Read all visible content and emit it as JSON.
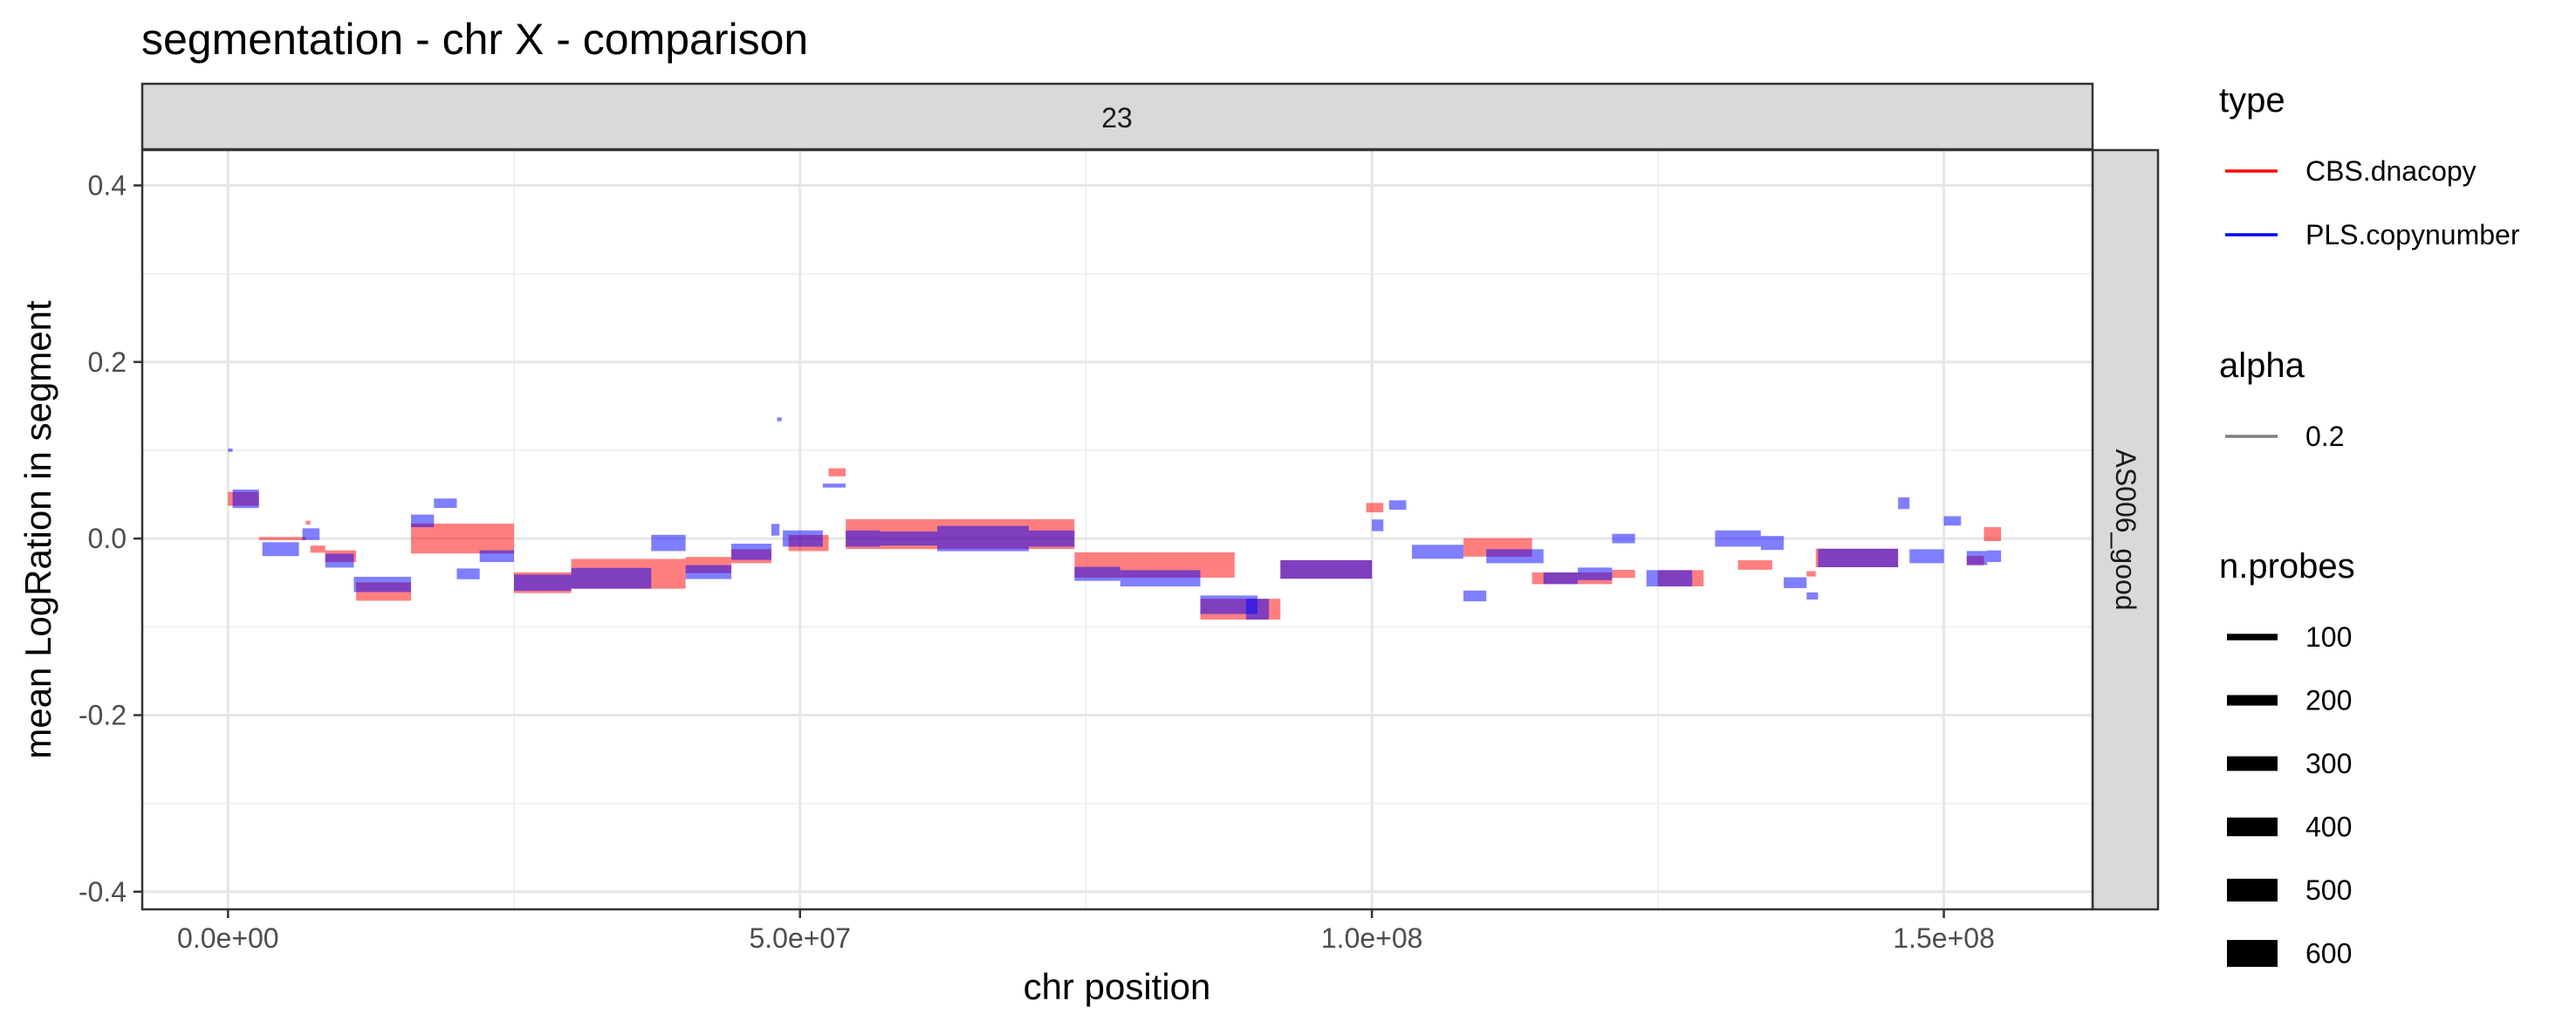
{
  "chart_data": {
    "type": "segment",
    "title": "segmentation - chr X - comparison",
    "xlabel": "chr position",
    "ylabel": "mean LogRation in segment",
    "xlim": [
      -7500000,
      163000000
    ],
    "ylim": [
      -0.42,
      0.44
    ],
    "x_ticks": [
      0,
      50000000,
      100000000,
      150000000
    ],
    "x_tick_labels": [
      "0.0e+00",
      "5.0e+07",
      "1.0e+08",
      "1.5e+08"
    ],
    "y_ticks": [
      -0.4,
      -0.2,
      0.0,
      0.2,
      0.4
    ],
    "y_tick_labels": [
      "-0.4",
      "-0.2",
      "0.0",
      "0.2",
      "0.4"
    ],
    "grid": true,
    "facet_col_label": "23",
    "facet_row_label": "AS006_good",
    "legend": {
      "placement": "right",
      "type_title": "type",
      "type_entries": [
        {
          "name": "CBS.dnacopy",
          "color": "#ff0000"
        },
        {
          "name": "PLS.copynumber",
          "color": "#0000ff"
        }
      ],
      "alpha_title": "alpha",
      "alpha_entries": [
        "0.2"
      ],
      "size_title": "n.probes",
      "size_entries": [
        100,
        200,
        300,
        400,
        500,
        600
      ]
    },
    "series": [
      {
        "name": "CBS.dnacopy",
        "color": "#ff0000",
        "segments": [
          {
            "start": 0,
            "end": 2700000,
            "value": 0.045,
            "n": 250
          },
          {
            "start": 2700000,
            "end": 6800000,
            "value": 0.0,
            "n": 10
          },
          {
            "start": 6800000,
            "end": 7200000,
            "value": 0.018,
            "n": 30
          },
          {
            "start": 7200000,
            "end": 8500000,
            "value": -0.012,
            "n": 100
          },
          {
            "start": 8500000,
            "end": 11200000,
            "value": -0.02,
            "n": 200
          },
          {
            "start": 11200000,
            "end": 16000000,
            "value": -0.06,
            "n": 350
          },
          {
            "start": 16000000,
            "end": 25000000,
            "value": 0.0,
            "n": 600
          },
          {
            "start": 25000000,
            "end": 30000000,
            "value": -0.05,
            "n": 400
          },
          {
            "start": 30000000,
            "end": 40000000,
            "value": -0.04,
            "n": 600
          },
          {
            "start": 40000000,
            "end": 44000000,
            "value": -0.03,
            "n": 300
          },
          {
            "start": 44000000,
            "end": 47500000,
            "value": -0.02,
            "n": 250
          },
          {
            "start": 49000000,
            "end": 52500000,
            "value": -0.005,
            "n": 300
          },
          {
            "start": 52500000,
            "end": 54000000,
            "value": 0.075,
            "n": 120
          },
          {
            "start": 54000000,
            "end": 74000000,
            "value": 0.005,
            "n": 600
          },
          {
            "start": 74000000,
            "end": 88000000,
            "value": -0.03,
            "n": 500
          },
          {
            "start": 85000000,
            "end": 92000000,
            "value": -0.08,
            "n": 400
          },
          {
            "start": 92000000,
            "end": 100000000,
            "value": -0.035,
            "n": 350
          },
          {
            "start": 99500000,
            "end": 101000000,
            "value": 0.035,
            "n": 150
          },
          {
            "start": 108000000,
            "end": 114000000,
            "value": -0.01,
            "n": 350
          },
          {
            "start": 114000000,
            "end": 118000000,
            "value": -0.045,
            "n": 200
          },
          {
            "start": 118000000,
            "end": 121000000,
            "value": -0.045,
            "n": 200
          },
          {
            "start": 121000000,
            "end": 123000000,
            "value": -0.04,
            "n": 120
          },
          {
            "start": 125000000,
            "end": 129000000,
            "value": -0.045,
            "n": 300
          },
          {
            "start": 132000000,
            "end": 135000000,
            "value": -0.03,
            "n": 150
          },
          {
            "start": 138000000,
            "end": 138800000,
            "value": -0.04,
            "n": 60
          },
          {
            "start": 138800000,
            "end": 146000000,
            "value": -0.022,
            "n": 350
          },
          {
            "start": 152000000,
            "end": 153500000,
            "value": -0.025,
            "n": 150
          },
          {
            "start": 153500000,
            "end": 155000000,
            "value": 0.005,
            "n": 250
          }
        ]
      },
      {
        "name": "PLS.copynumber",
        "color": "#0000ff",
        "segments": [
          {
            "start": 0,
            "end": 400000,
            "value": 0.1,
            "n": 15
          },
          {
            "start": 400000,
            "end": 2700000,
            "value": 0.045,
            "n": 350
          },
          {
            "start": 3000000,
            "end": 6200000,
            "value": -0.012,
            "n": 250
          },
          {
            "start": 6500000,
            "end": 8000000,
            "value": 0.005,
            "n": 200
          },
          {
            "start": 8500000,
            "end": 11000000,
            "value": -0.025,
            "n": 250
          },
          {
            "start": 11000000,
            "end": 16000000,
            "value": -0.052,
            "n": 280
          },
          {
            "start": 16000000,
            "end": 18000000,
            "value": 0.02,
            "n": 220
          },
          {
            "start": 18000000,
            "end": 20000000,
            "value": 0.04,
            "n": 150
          },
          {
            "start": 20000000,
            "end": 22000000,
            "value": -0.04,
            "n": 180
          },
          {
            "start": 22000000,
            "end": 25000000,
            "value": -0.02,
            "n": 200
          },
          {
            "start": 25000000,
            "end": 30000000,
            "value": -0.05,
            "n": 300
          },
          {
            "start": 30000000,
            "end": 37000000,
            "value": -0.045,
            "n": 400
          },
          {
            "start": 37000000,
            "end": 40000000,
            "value": -0.005,
            "n": 300
          },
          {
            "start": 40000000,
            "end": 44000000,
            "value": -0.038,
            "n": 250
          },
          {
            "start": 44000000,
            "end": 47500000,
            "value": -0.015,
            "n": 300
          },
          {
            "start": 47500000,
            "end": 48200000,
            "value": 0.01,
            "n": 200
          },
          {
            "start": 48000000,
            "end": 48400000,
            "value": 0.135,
            "n": 25
          },
          {
            "start": 48500000,
            "end": 52000000,
            "value": 0.0,
            "n": 300
          },
          {
            "start": 52000000,
            "end": 54000000,
            "value": 0.06,
            "n": 30
          },
          {
            "start": 54000000,
            "end": 57000000,
            "value": 0.0,
            "n": 300
          },
          {
            "start": 57000000,
            "end": 62000000,
            "value": 0.0,
            "n": 250
          },
          {
            "start": 62000000,
            "end": 70000000,
            "value": 0.0,
            "n": 500
          },
          {
            "start": 70000000,
            "end": 74000000,
            "value": 0.0,
            "n": 300
          },
          {
            "start": 74000000,
            "end": 78000000,
            "value": -0.04,
            "n": 250
          },
          {
            "start": 78000000,
            "end": 85000000,
            "value": -0.045,
            "n": 300
          },
          {
            "start": 85000000,
            "end": 90000000,
            "value": -0.075,
            "n": 350
          },
          {
            "start": 89000000,
            "end": 91000000,
            "value": -0.08,
            "n": 400
          },
          {
            "start": 92000000,
            "end": 100000000,
            "value": -0.035,
            "n": 350
          },
          {
            "start": 100000000,
            "end": 101000000,
            "value": 0.015,
            "n": 200
          },
          {
            "start": 101500000,
            "end": 103000000,
            "value": 0.038,
            "n": 150
          },
          {
            "start": 103500000,
            "end": 108000000,
            "value": -0.015,
            "n": 250
          },
          {
            "start": 108000000,
            "end": 110000000,
            "value": -0.065,
            "n": 180
          },
          {
            "start": 110000000,
            "end": 115000000,
            "value": -0.02,
            "n": 250
          },
          {
            "start": 115000000,
            "end": 118000000,
            "value": -0.045,
            "n": 200
          },
          {
            "start": 118000000,
            "end": 121000000,
            "value": -0.04,
            "n": 220
          },
          {
            "start": 121000000,
            "end": 123000000,
            "value": 0.0,
            "n": 150
          },
          {
            "start": 124000000,
            "end": 128000000,
            "value": -0.045,
            "n": 300
          },
          {
            "start": 130000000,
            "end": 134000000,
            "value": 0.0,
            "n": 300
          },
          {
            "start": 134000000,
            "end": 136000000,
            "value": -0.005,
            "n": 250
          },
          {
            "start": 136000000,
            "end": 138000000,
            "value": -0.05,
            "n": 180
          },
          {
            "start": 138000000,
            "end": 139000000,
            "value": -0.065,
            "n": 100
          },
          {
            "start": 139000000,
            "end": 146000000,
            "value": -0.022,
            "n": 350
          },
          {
            "start": 146000000,
            "end": 147000000,
            "value": 0.04,
            "n": 200
          },
          {
            "start": 147000000,
            "end": 150000000,
            "value": -0.02,
            "n": 250
          },
          {
            "start": 150000000,
            "end": 151500000,
            "value": 0.02,
            "n": 150
          },
          {
            "start": 152000000,
            "end": 153800000,
            "value": -0.022,
            "n": 250
          },
          {
            "start": 153800000,
            "end": 155000000,
            "value": -0.02,
            "n": 200
          }
        ]
      }
    ]
  }
}
